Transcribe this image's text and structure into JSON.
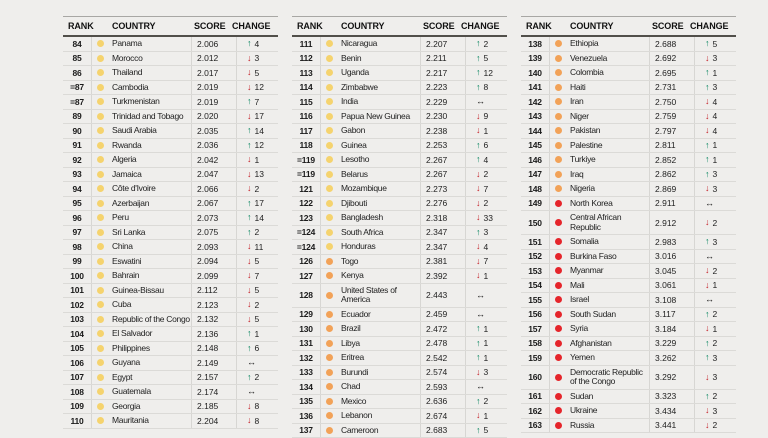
{
  "header": {
    "rank": "RANK",
    "country": "COUNTRY",
    "score": "SCORE",
    "change": "CHANGE"
  },
  "glyphs": {
    "up": "↑",
    "down": "↓",
    "steady": "↔"
  },
  "colors": {
    "yellow": "#f5d36e",
    "orange": "#f2a258",
    "red": "#e5252b",
    "up": "#00825c",
    "down": "#c42128",
    "steady": "#1a1a1a"
  },
  "tables": [
    {
      "rows": [
        {
          "rank": "84",
          "band": "yellow",
          "country": "Panama",
          "score": "2.006",
          "dir": "up",
          "change": "4"
        },
        {
          "rank": "85",
          "band": "yellow",
          "country": "Morocco",
          "score": "2.012",
          "dir": "down",
          "change": "3"
        },
        {
          "rank": "86",
          "band": "yellow",
          "country": "Thailand",
          "score": "2.017",
          "dir": "down",
          "change": "5"
        },
        {
          "rank": "=87",
          "band": "yellow",
          "country": "Cambodia",
          "score": "2.019",
          "dir": "down",
          "change": "12"
        },
        {
          "rank": "=87",
          "band": "yellow",
          "country": "Turkmenistan",
          "score": "2.019",
          "dir": "up",
          "change": "7"
        },
        {
          "rank": "89",
          "band": "yellow",
          "country": "Trinidad and Tobago",
          "score": "2.020",
          "dir": "down",
          "change": "17"
        },
        {
          "rank": "90",
          "band": "yellow",
          "country": "Saudi Arabia",
          "score": "2.035",
          "dir": "up",
          "change": "14"
        },
        {
          "rank": "91",
          "band": "yellow",
          "country": "Rwanda",
          "score": "2.036",
          "dir": "up",
          "change": "12"
        },
        {
          "rank": "92",
          "band": "yellow",
          "country": "Algeria",
          "score": "2.042",
          "dir": "down",
          "change": "1"
        },
        {
          "rank": "93",
          "band": "yellow",
          "country": "Jamaica",
          "score": "2.047",
          "dir": "down",
          "change": "13"
        },
        {
          "rank": "94",
          "band": "yellow",
          "country": "Côte d'Ivoire",
          "score": "2.066",
          "dir": "down",
          "change": "2"
        },
        {
          "rank": "95",
          "band": "yellow",
          "country": "Azerbaijan",
          "score": "2.067",
          "dir": "up",
          "change": "17"
        },
        {
          "rank": "96",
          "band": "yellow",
          "country": "Peru",
          "score": "2.073",
          "dir": "up",
          "change": "14"
        },
        {
          "rank": "97",
          "band": "yellow",
          "country": "Sri Lanka",
          "score": "2.075",
          "dir": "up",
          "change": "2"
        },
        {
          "rank": "98",
          "band": "yellow",
          "country": "China",
          "score": "2.093",
          "dir": "down",
          "change": "11"
        },
        {
          "rank": "99",
          "band": "yellow",
          "country": "Eswatini",
          "score": "2.094",
          "dir": "down",
          "change": "5"
        },
        {
          "rank": "100",
          "band": "yellow",
          "country": "Bahrain",
          "score": "2.099",
          "dir": "down",
          "change": "7"
        },
        {
          "rank": "101",
          "band": "yellow",
          "country": "Guinea-Bissau",
          "score": "2.112",
          "dir": "down",
          "change": "5"
        },
        {
          "rank": "102",
          "band": "yellow",
          "country": "Cuba",
          "score": "2.123",
          "dir": "down",
          "change": "2"
        },
        {
          "rank": "103",
          "band": "yellow",
          "country": "Republic of the Congo",
          "score": "2.132",
          "dir": "down",
          "change": "5"
        },
        {
          "rank": "104",
          "band": "yellow",
          "country": "El Salvador",
          "score": "2.136",
          "dir": "up",
          "change": "1"
        },
        {
          "rank": "105",
          "band": "yellow",
          "country": "Philippines",
          "score": "2.148",
          "dir": "up",
          "change": "6"
        },
        {
          "rank": "106",
          "band": "yellow",
          "country": "Guyana",
          "score": "2.149",
          "dir": "steady",
          "change": ""
        },
        {
          "rank": "107",
          "band": "yellow",
          "country": "Egypt",
          "score": "2.157",
          "dir": "up",
          "change": "2"
        },
        {
          "rank": "108",
          "band": "yellow",
          "country": "Guatemala",
          "score": "2.174",
          "dir": "steady",
          "change": ""
        },
        {
          "rank": "109",
          "band": "yellow",
          "country": "Georgia",
          "score": "2.185",
          "dir": "down",
          "change": "8"
        },
        {
          "rank": "110",
          "band": "yellow",
          "country": "Mauritania",
          "score": "2.204",
          "dir": "down",
          "change": "8"
        }
      ]
    },
    {
      "rows": [
        {
          "rank": "111",
          "band": "yellow",
          "country": "Nicaragua",
          "score": "2.207",
          "dir": "up",
          "change": "2"
        },
        {
          "rank": "112",
          "band": "yellow",
          "country": "Benin",
          "score": "2.211",
          "dir": "up",
          "change": "5"
        },
        {
          "rank": "113",
          "band": "yellow",
          "country": "Uganda",
          "score": "2.217",
          "dir": "up",
          "change": "12"
        },
        {
          "rank": "114",
          "band": "yellow",
          "country": "Zimbabwe",
          "score": "2.223",
          "dir": "up",
          "change": "8"
        },
        {
          "rank": "115",
          "band": "yellow",
          "country": "India",
          "score": "2.229",
          "dir": "steady",
          "change": ""
        },
        {
          "rank": "116",
          "band": "yellow",
          "country": "Papua New Guinea",
          "score": "2.230",
          "dir": "down",
          "change": "9"
        },
        {
          "rank": "117",
          "band": "yellow",
          "country": "Gabon",
          "score": "2.238",
          "dir": "down",
          "change": "1"
        },
        {
          "rank": "118",
          "band": "yellow",
          "country": "Guinea",
          "score": "2.253",
          "dir": "up",
          "change": "6"
        },
        {
          "rank": "=119",
          "band": "yellow",
          "country": "Lesotho",
          "score": "2.267",
          "dir": "up",
          "change": "4"
        },
        {
          "rank": "=119",
          "band": "yellow",
          "country": "Belarus",
          "score": "2.267",
          "dir": "down",
          "change": "2"
        },
        {
          "rank": "121",
          "band": "yellow",
          "country": "Mozambique",
          "score": "2.273",
          "dir": "down",
          "change": "7"
        },
        {
          "rank": "122",
          "band": "yellow",
          "country": "Djibouti",
          "score": "2.276",
          "dir": "down",
          "change": "2"
        },
        {
          "rank": "123",
          "band": "yellow",
          "country": "Bangladesh",
          "score": "2.318",
          "dir": "down",
          "change": "33"
        },
        {
          "rank": "=124",
          "band": "yellow",
          "country": "South Africa",
          "score": "2.347",
          "dir": "up",
          "change": "3"
        },
        {
          "rank": "=124",
          "band": "yellow",
          "country": "Honduras",
          "score": "2.347",
          "dir": "down",
          "change": "4"
        },
        {
          "rank": "126",
          "band": "orange",
          "country": "Togo",
          "score": "2.381",
          "dir": "down",
          "change": "7"
        },
        {
          "rank": "127",
          "band": "orange",
          "country": "Kenya",
          "score": "2.392",
          "dir": "down",
          "change": "1"
        },
        {
          "rank": "128",
          "band": "orange",
          "country": "United States of America",
          "score": "2.443",
          "dir": "steady",
          "change": ""
        },
        {
          "rank": "129",
          "band": "orange",
          "country": "Ecuador",
          "score": "2.459",
          "dir": "steady",
          "change": ""
        },
        {
          "rank": "130",
          "band": "orange",
          "country": "Brazil",
          "score": "2.472",
          "dir": "up",
          "change": "1"
        },
        {
          "rank": "131",
          "band": "orange",
          "country": "Libya",
          "score": "2.478",
          "dir": "up",
          "change": "1"
        },
        {
          "rank": "132",
          "band": "orange",
          "country": "Eritrea",
          "score": "2.542",
          "dir": "up",
          "change": "1"
        },
        {
          "rank": "133",
          "band": "orange",
          "country": "Burundi",
          "score": "2.574",
          "dir": "down",
          "change": "3"
        },
        {
          "rank": "134",
          "band": "orange",
          "country": "Chad",
          "score": "2.593",
          "dir": "steady",
          "change": ""
        },
        {
          "rank": "135",
          "band": "orange",
          "country": "Mexico",
          "score": "2.636",
          "dir": "up",
          "change": "2"
        },
        {
          "rank": "136",
          "band": "orange",
          "country": "Lebanon",
          "score": "2.674",
          "dir": "down",
          "change": "1"
        },
        {
          "rank": "137",
          "band": "orange",
          "country": "Cameroon",
          "score": "2.683",
          "dir": "up",
          "change": "5"
        }
      ]
    },
    {
      "rows": [
        {
          "rank": "138",
          "band": "orange",
          "country": "Ethiopia",
          "score": "2.688",
          "dir": "up",
          "change": "5"
        },
        {
          "rank": "139",
          "band": "orange",
          "country": "Venezuela",
          "score": "2.692",
          "dir": "down",
          "change": "3"
        },
        {
          "rank": "140",
          "band": "orange",
          "country": "Colombia",
          "score": "2.695",
          "dir": "up",
          "change": "1"
        },
        {
          "rank": "141",
          "band": "orange",
          "country": "Haiti",
          "score": "2.731",
          "dir": "up",
          "change": "3"
        },
        {
          "rank": "142",
          "band": "orange",
          "country": "Iran",
          "score": "2.750",
          "dir": "down",
          "change": "4"
        },
        {
          "rank": "143",
          "band": "orange",
          "country": "Niger",
          "score": "2.759",
          "dir": "down",
          "change": "4"
        },
        {
          "rank": "144",
          "band": "orange",
          "country": "Pakistan",
          "score": "2.797",
          "dir": "down",
          "change": "4"
        },
        {
          "rank": "145",
          "band": "orange",
          "country": "Palestine",
          "score": "2.811",
          "dir": "up",
          "change": "1"
        },
        {
          "rank": "146",
          "band": "orange",
          "country": "Turkiye",
          "score": "2.852",
          "dir": "up",
          "change": "1"
        },
        {
          "rank": "147",
          "band": "orange",
          "country": "Iraq",
          "score": "2.862",
          "dir": "up",
          "change": "3"
        },
        {
          "rank": "148",
          "band": "orange",
          "country": "Nigeria",
          "score": "2.869",
          "dir": "down",
          "change": "3"
        },
        {
          "rank": "149",
          "band": "red",
          "country": "North Korea",
          "score": "2.911",
          "dir": "steady",
          "change": ""
        },
        {
          "rank": "150",
          "band": "red",
          "country": "Central African Republic",
          "score": "2.912",
          "dir": "down",
          "change": "2"
        },
        {
          "rank": "151",
          "band": "red",
          "country": "Somalia",
          "score": "2.983",
          "dir": "up",
          "change": "3"
        },
        {
          "rank": "152",
          "band": "red",
          "country": "Burkina Faso",
          "score": "3.016",
          "dir": "steady",
          "change": ""
        },
        {
          "rank": "153",
          "band": "red",
          "country": "Myanmar",
          "score": "3.045",
          "dir": "down",
          "change": "2"
        },
        {
          "rank": "154",
          "band": "red",
          "country": "Mali",
          "score": "3.061",
          "dir": "down",
          "change": "1"
        },
        {
          "rank": "155",
          "band": "red",
          "country": "Israel",
          "score": "3.108",
          "dir": "steady",
          "change": ""
        },
        {
          "rank": "156",
          "band": "red",
          "country": "South Sudan",
          "score": "3.117",
          "dir": "up",
          "change": "2"
        },
        {
          "rank": "157",
          "band": "red",
          "country": "Syria",
          "score": "3.184",
          "dir": "down",
          "change": "1"
        },
        {
          "rank": "158",
          "band": "red",
          "country": "Afghanistan",
          "score": "3.229",
          "dir": "up",
          "change": "2"
        },
        {
          "rank": "159",
          "band": "red",
          "country": "Yemen",
          "score": "3.262",
          "dir": "up",
          "change": "3"
        },
        {
          "rank": "160",
          "band": "red",
          "country": "Democratic Republic of the Congo",
          "score": "3.292",
          "dir": "down",
          "change": "3"
        },
        {
          "rank": "161",
          "band": "red",
          "country": "Sudan",
          "score": "3.323",
          "dir": "up",
          "change": "2"
        },
        {
          "rank": "162",
          "band": "red",
          "country": "Ukraine",
          "score": "3.434",
          "dir": "down",
          "change": "3"
        },
        {
          "rank": "163",
          "band": "red",
          "country": "Russia",
          "score": "3.441",
          "dir": "down",
          "change": "2"
        }
      ]
    }
  ]
}
